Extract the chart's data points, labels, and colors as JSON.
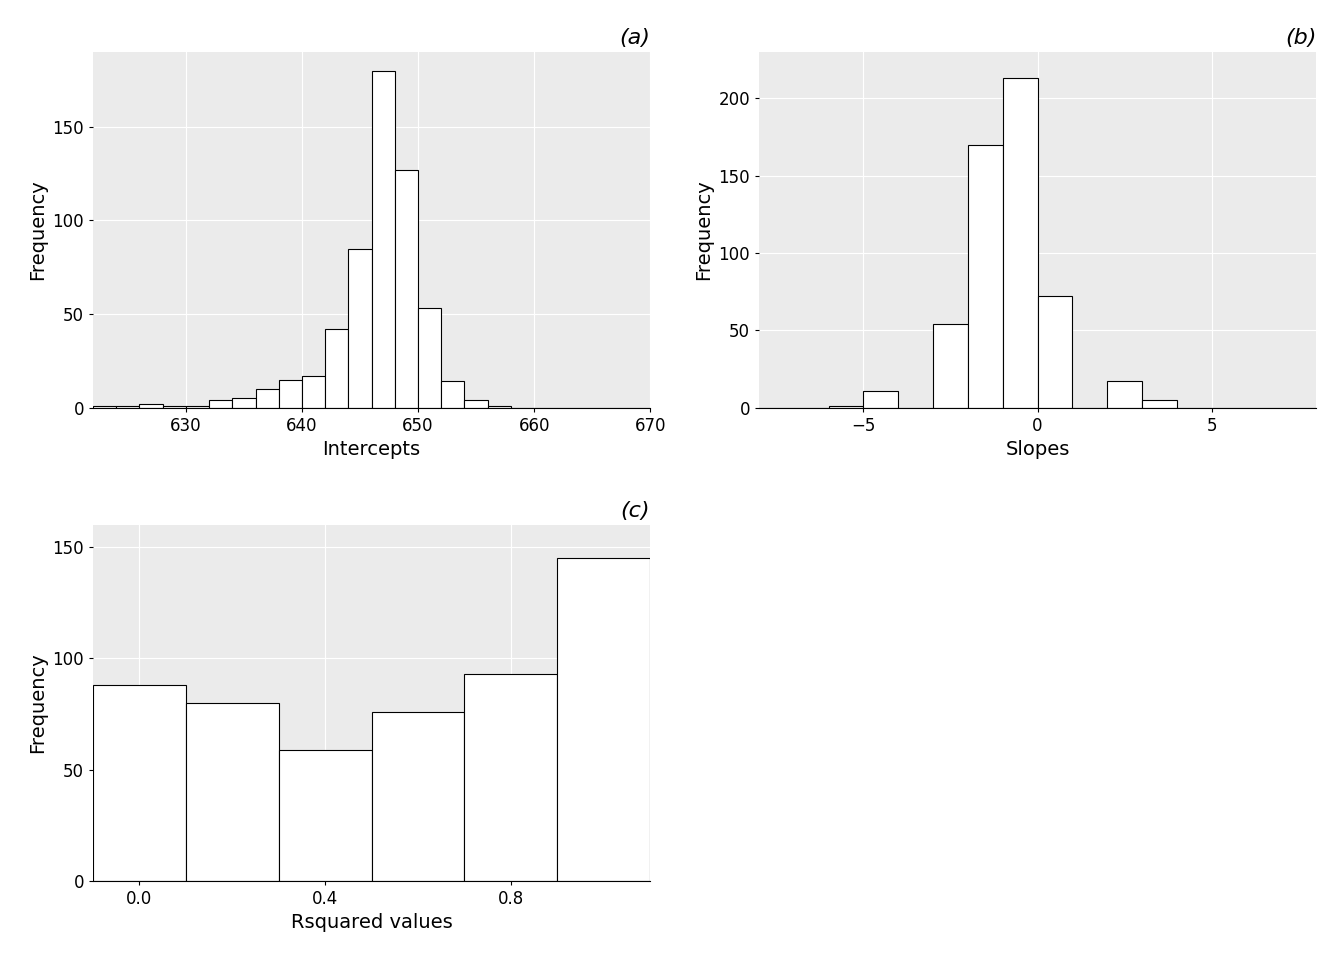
{
  "intercepts": {
    "bin_edges": [
      622,
      624,
      626,
      628,
      630,
      632,
      634,
      636,
      638,
      640,
      642,
      644,
      646,
      648,
      650,
      652,
      654,
      656,
      658,
      660,
      662,
      664,
      666,
      668,
      670
    ],
    "counts": [
      1,
      1,
      2,
      1,
      1,
      4,
      5,
      10,
      15,
      17,
      42,
      85,
      180,
      127,
      53,
      14,
      4,
      1,
      0,
      0,
      0,
      0,
      0,
      0
    ],
    "xlabel": "Intercepts",
    "ylabel": "Frequency",
    "title": "(a)",
    "xlim": [
      622,
      670
    ],
    "xticks": [
      630,
      640,
      650,
      660,
      670
    ],
    "ylim": [
      0,
      190
    ],
    "yticks": [
      0,
      50,
      100,
      150
    ]
  },
  "slopes": {
    "bin_edges": [
      -8,
      -7,
      -6,
      -5,
      -4,
      -3,
      -2,
      -1,
      0,
      1,
      2,
      3,
      4,
      5,
      6,
      7,
      8
    ],
    "counts": [
      0,
      0,
      1,
      11,
      0,
      54,
      170,
      213,
      72,
      0,
      17,
      5,
      0,
      0,
      0,
      0
    ],
    "xlabel": "Slopes",
    "ylabel": "Frequency",
    "title": "(b)",
    "xlim": [
      -8,
      8
    ],
    "xticks": [
      -5,
      0,
      5
    ],
    "ylim": [
      0,
      230
    ],
    "yticks": [
      0,
      50,
      100,
      150,
      200
    ]
  },
  "rsquared": {
    "bin_edges": [
      -0.1,
      0.1,
      0.3,
      0.5,
      0.7,
      0.9,
      1.1
    ],
    "counts": [
      88,
      80,
      59,
      76,
      93,
      145
    ],
    "xlabel": "Rsquared values",
    "ylabel": "Frequency",
    "title": "(c)",
    "xlim": [
      -0.1,
      1.1
    ],
    "xticks": [
      0.0,
      0.4,
      0.8
    ],
    "ylim": [
      0,
      160
    ],
    "yticks": [
      0,
      50,
      100,
      150
    ]
  },
  "bg_color": "#EBEBEB",
  "bar_facecolor": "white",
  "bar_edgecolor": "black",
  "grid_color": "white",
  "label_fontsize": 14,
  "title_fontsize": 16,
  "tick_fontsize": 12
}
